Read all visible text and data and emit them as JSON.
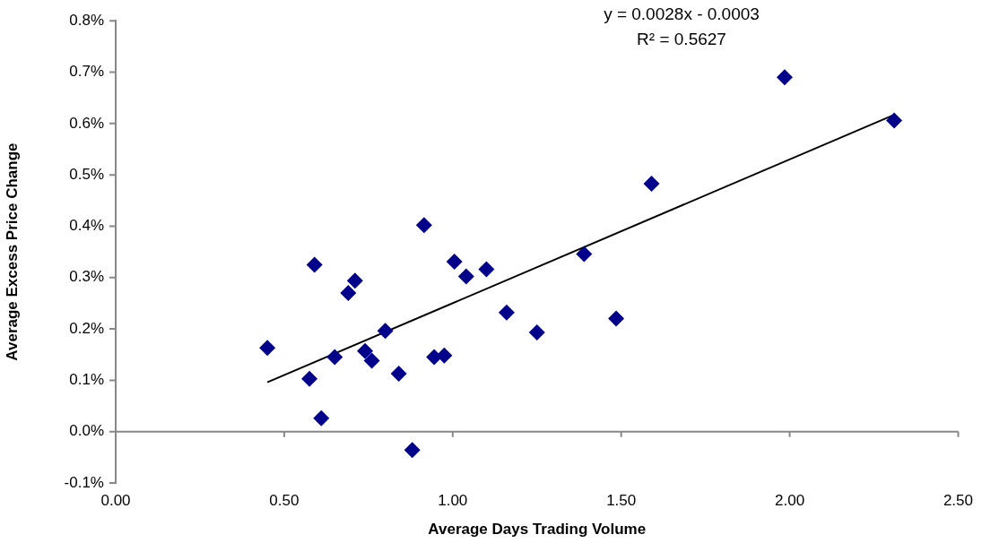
{
  "chart_data": {
    "type": "scatter",
    "xlabel": "Average Days Trading Volume",
    "ylabel": "Average Excess Price Change",
    "annotations": [
      "y = 0.0028x - 0.0003",
      "R² = 0.5627"
    ],
    "xlim": [
      0,
      2.5
    ],
    "xticks": [
      {
        "value": 0,
        "label": "0.00"
      },
      {
        "value": 0.5,
        "label": "0.50"
      },
      {
        "value": 1,
        "label": "1.00"
      },
      {
        "value": 1.5,
        "label": "1.50"
      },
      {
        "value": 2,
        "label": "2.00"
      },
      {
        "value": 2.5,
        "label": "2.50"
      }
    ],
    "ylim": [
      -0.1,
      0.8
    ],
    "yticks": [
      {
        "value": -0.1,
        "label": "-0.1%"
      },
      {
        "value": 0,
        "label": "0.0%"
      },
      {
        "value": 0.1,
        "label": "0.1%"
      },
      {
        "value": 0.2,
        "label": "0.2%"
      },
      {
        "value": 0.3,
        "label": "0.3%"
      },
      {
        "value": 0.4,
        "label": "0.4%"
      },
      {
        "value": 0.5,
        "label": "0.5%"
      },
      {
        "value": 0.6,
        "label": "0.6%"
      },
      {
        "value": 0.7,
        "label": "0.7%"
      },
      {
        "value": 0.8,
        "label": "0.8%"
      }
    ],
    "legend": false,
    "series": [
      {
        "marker": "diamond",
        "color": "#00008b",
        "x": [
          0.45,
          0.575,
          0.59,
          0.61,
          0.65,
          0.69,
          0.71,
          0.74,
          0.76,
          0.8,
          0.84,
          0.88,
          0.915,
          0.945,
          0.975,
          1.005,
          1.04,
          1.1,
          1.16,
          1.25,
          1.39,
          1.485,
          1.59,
          1.985,
          2.31
        ],
        "values": [
          0.163,
          0.103,
          0.325,
          0.026,
          0.145,
          0.27,
          0.294,
          0.157,
          0.138,
          0.196,
          0.113,
          -0.036,
          0.402,
          0.145,
          0.148,
          0.331,
          0.302,
          0.316,
          0.232,
          0.193,
          0.346,
          0.22,
          0.483,
          0.69,
          0.606
        ]
      },
      {
        "type": "line",
        "marker": "none",
        "color": "#000000",
        "x": [
          0.45,
          2.31
        ],
        "values": [
          0.096,
          0.617
        ]
      }
    ]
  }
}
